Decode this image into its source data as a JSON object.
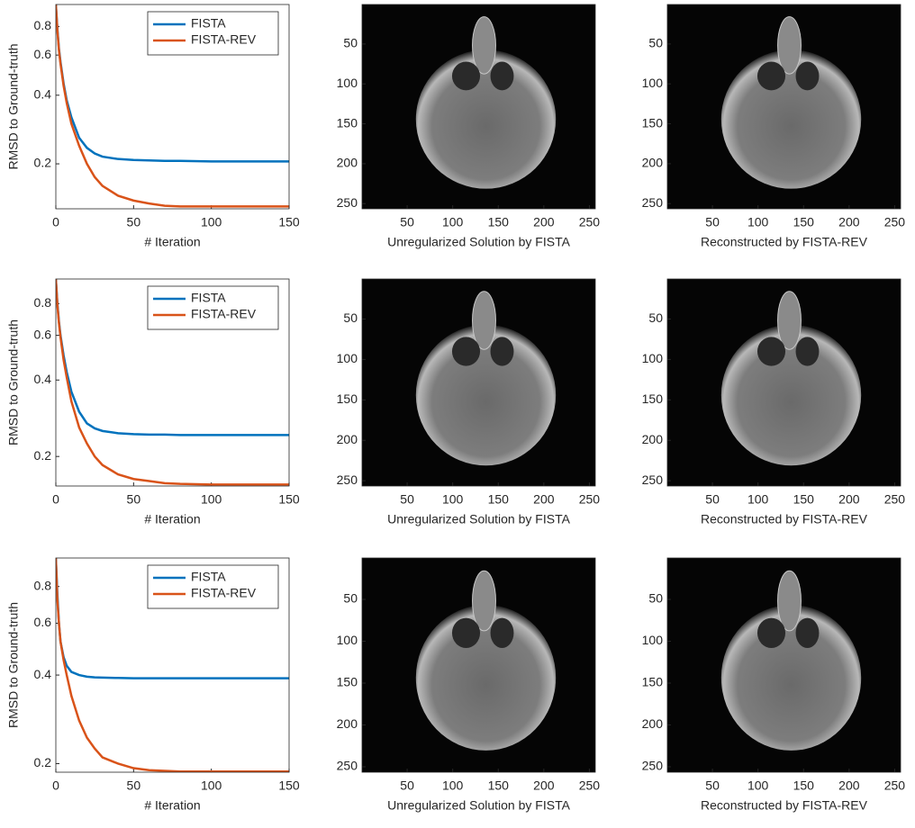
{
  "chart_data": [
    {
      "type": "line",
      "xlabel": "# Iteration",
      "ylabel": "RMSD to Ground-truth",
      "log_y": true,
      "legend": "upper right",
      "x": [
        0,
        1,
        2,
        3,
        5,
        7,
        10,
        15,
        20,
        25,
        30,
        40,
        50,
        60,
        70,
        80,
        100,
        120,
        150
      ],
      "series": [
        {
          "name": "FISTA",
          "color": "#0072bd",
          "values": [
            1.0,
            0.78,
            0.64,
            0.56,
            0.45,
            0.38,
            0.32,
            0.26,
            0.235,
            0.222,
            0.215,
            0.21,
            0.208,
            0.207,
            0.206,
            0.206,
            0.205,
            0.205,
            0.205
          ]
        },
        {
          "name": "FISTA-REV",
          "color": "#d95319",
          "values": [
            1.0,
            0.77,
            0.63,
            0.55,
            0.44,
            0.37,
            0.3,
            0.24,
            0.2,
            0.175,
            0.16,
            0.145,
            0.138,
            0.134,
            0.131,
            0.13,
            0.13,
            0.13,
            0.13
          ]
        }
      ],
      "xlim": [
        0,
        150
      ],
      "ylim": [
        0.127,
        1.0
      ],
      "xticks": [
        0,
        50,
        100,
        150
      ],
      "yticks": [
        0.2,
        0.4,
        0.6,
        0.8
      ]
    },
    {
      "type": "image",
      "xlabel": "Unregularized Solution by FISTA",
      "colormap": "gray",
      "y_reversed": true,
      "xlim": [
        0.5,
        256.5
      ],
      "ylim": [
        0.5,
        256.5
      ],
      "xticks": [
        50,
        100,
        150,
        200,
        250
      ],
      "yticks": [
        50,
        100,
        150,
        200,
        250
      ]
    },
    {
      "type": "image",
      "xlabel": "Reconstructed by FISTA-REV",
      "colormap": "gray",
      "y_reversed": true,
      "xlim": [
        0.5,
        256.5
      ],
      "ylim": [
        0.5,
        256.5
      ],
      "xticks": [
        50,
        100,
        150,
        200,
        250
      ],
      "yticks": [
        50,
        100,
        150,
        200,
        250
      ]
    },
    {
      "type": "line",
      "xlabel": "# Iteration",
      "ylabel": "RMSD to Ground-truth",
      "log_y": true,
      "legend": "upper right",
      "x": [
        0,
        1,
        2,
        3,
        5,
        7,
        10,
        15,
        20,
        25,
        30,
        40,
        50,
        60,
        70,
        80,
        100,
        120,
        150
      ],
      "series": [
        {
          "name": "FISTA",
          "color": "#0072bd",
          "values": [
            1.0,
            0.8,
            0.68,
            0.6,
            0.5,
            0.43,
            0.36,
            0.3,
            0.27,
            0.258,
            0.252,
            0.247,
            0.245,
            0.244,
            0.244,
            0.243,
            0.243,
            0.243,
            0.243
          ]
        },
        {
          "name": "FISTA-REV",
          "color": "#d95319",
          "values": [
            1.0,
            0.79,
            0.67,
            0.59,
            0.48,
            0.41,
            0.33,
            0.26,
            0.225,
            0.2,
            0.185,
            0.17,
            0.163,
            0.16,
            0.157,
            0.156,
            0.155,
            0.155,
            0.155
          ]
        }
      ],
      "xlim": [
        0,
        150
      ],
      "ylim": [
        0.153,
        1.0
      ],
      "xticks": [
        0,
        50,
        100,
        150
      ],
      "yticks": [
        0.2,
        0.4,
        0.6,
        0.8
      ]
    },
    {
      "type": "image",
      "xlabel": "Unregularized Solution by FISTA",
      "colormap": "gray",
      "y_reversed": true,
      "xlim": [
        0.5,
        256.5
      ],
      "ylim": [
        0.5,
        256.5
      ],
      "xticks": [
        50,
        100,
        150,
        200,
        250
      ],
      "yticks": [
        50,
        100,
        150,
        200,
        250
      ]
    },
    {
      "type": "image",
      "xlabel": "Reconstructed by FISTA-REV",
      "colormap": "gray",
      "y_reversed": true,
      "xlim": [
        0.5,
        256.5
      ],
      "ylim": [
        0.5,
        256.5
      ],
      "xticks": [
        50,
        100,
        150,
        200,
        250
      ],
      "yticks": [
        50,
        100,
        150,
        200,
        250
      ]
    },
    {
      "type": "line",
      "xlabel": "# Iteration",
      "ylabel": "RMSD to Ground-truth",
      "log_y": true,
      "legend": "upper right",
      "x": [
        0,
        1,
        2,
        3,
        5,
        7,
        10,
        15,
        20,
        25,
        30,
        40,
        50,
        60,
        70,
        80,
        100,
        120,
        150
      ],
      "series": [
        {
          "name": "FISTA",
          "color": "#0072bd",
          "values": [
            1.0,
            0.75,
            0.6,
            0.52,
            0.46,
            0.43,
            0.41,
            0.4,
            0.395,
            0.393,
            0.392,
            0.391,
            0.39,
            0.39,
            0.39,
            0.39,
            0.39,
            0.39,
            0.39
          ]
        },
        {
          "name": "FISTA-REV",
          "color": "#d95319",
          "values": [
            1.0,
            0.72,
            0.6,
            0.52,
            0.45,
            0.4,
            0.34,
            0.28,
            0.245,
            0.225,
            0.21,
            0.2,
            0.193,
            0.19,
            0.189,
            0.188,
            0.188,
            0.188,
            0.188
          ]
        }
      ],
      "xlim": [
        0,
        150
      ],
      "ylim": [
        0.187,
        1.0
      ],
      "xticks": [
        0,
        50,
        100,
        150
      ],
      "yticks": [
        0.2,
        0.4,
        0.6,
        0.8
      ]
    },
    {
      "type": "image",
      "xlabel": "Unregularized Solution by FISTA",
      "colormap": "gray",
      "y_reversed": true,
      "xlim": [
        0.5,
        256.5
      ],
      "ylim": [
        0.5,
        256.5
      ],
      "xticks": [
        50,
        100,
        150,
        200,
        250
      ],
      "yticks": [
        50,
        100,
        150,
        200,
        250
      ]
    },
    {
      "type": "image",
      "xlabel": "Reconstructed by FISTA-REV",
      "colormap": "gray",
      "y_reversed": true,
      "xlim": [
        0.5,
        256.5
      ],
      "ylim": [
        0.5,
        256.5
      ],
      "xticks": [
        50,
        100,
        150,
        200,
        250
      ],
      "yticks": [
        50,
        100,
        150,
        200,
        250
      ]
    }
  ]
}
